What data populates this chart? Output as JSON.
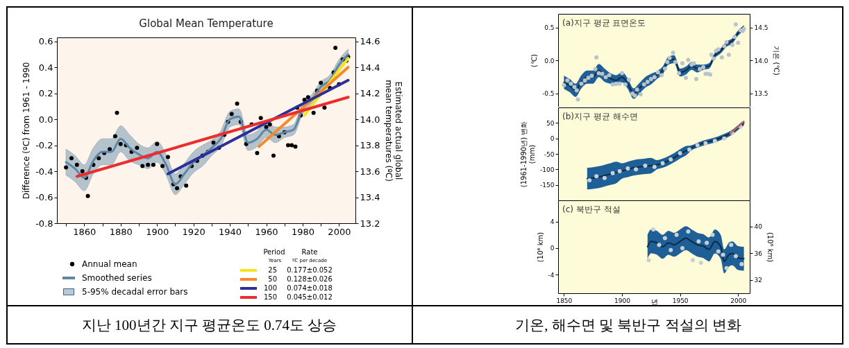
{
  "chart_data": [
    {
      "type": "scatter",
      "title": "Global Mean Temperature",
      "ylabel": "Difference (ºC) from 1961 - 1990",
      "y2label": "Estimated actual global mean temperatures (ºC)",
      "xlim": [
        1845,
        2009
      ],
      "xticks": [
        {
          "value": 1850,
          "label": null
        },
        1860,
        {
          "value": 1870,
          "label": null
        },
        1880,
        {
          "value": 1890,
          "label": null
        },
        1900,
        {
          "value": 1910,
          "label": null
        },
        1920,
        {
          "value": 1930,
          "label": null
        },
        1940,
        {
          "value": 1950,
          "label": null
        },
        1960,
        {
          "value": 1970,
          "label": null
        },
        1980,
        {
          "value": 1990,
          "label": null
        },
        2000
      ],
      "ylim": [
        -0.8,
        0.63
      ],
      "yticks": [
        -0.8,
        -0.6,
        -0.4,
        -0.2,
        {
          "value": 0,
          "label": "0.0"
        },
        0.2,
        0.4,
        0.6
      ],
      "y2lim": [
        13.2,
        14.63
      ],
      "y2ticks": [
        13.2,
        13.4,
        13.6,
        13.8,
        {
          "value": 14,
          "label": "14.0"
        },
        14.2,
        14.4,
        14.6
      ],
      "legend": "bottom",
      "annotations": [
        "지난 100년간 지구 평균온도 0.74도 상승",
        "5-95% decadal error bars",
        "Period",
        "Years",
        "Rate",
        "ºC per decade",
        "0.177±0.052",
        "0.128±0.026",
        "0.074±0.018",
        "0.045±0.012"
      ],
      "series": [
        {
          "name": "Annual mean",
          "color": "#000000",
          "x": [
            1850,
            1853,
            1856,
            1859,
            1861,
            1862,
            1865,
            1868,
            1871,
            1874,
            1877,
            1878,
            1880,
            1883,
            1886,
            1889,
            1892,
            1895,
            1898,
            1900,
            1903,
            1906,
            1909,
            1911,
            1913,
            1916,
            1919,
            1922,
            1925,
            1928,
            1931,
            1934,
            1937,
            1939,
            1941,
            1944,
            1946,
            1949,
            1952,
            1955,
            1957,
            1960,
            1962,
            1964,
            1967,
            1970,
            1972,
            1974,
            1976,
            1977,
            1979,
            1981,
            1983,
            1986,
            1988,
            1990,
            1992,
            1995,
            1997,
            1998,
            2000,
            2002,
            2004,
            2005
          ],
          "values": [
            -0.37,
            -0.3,
            -0.35,
            -0.4,
            -0.45,
            -0.59,
            -0.35,
            -0.3,
            -0.26,
            -0.23,
            -0.13,
            0.05,
            -0.19,
            -0.2,
            -0.25,
            -0.22,
            -0.36,
            -0.35,
            -0.35,
            -0.19,
            -0.36,
            -0.29,
            -0.5,
            -0.53,
            -0.44,
            -0.51,
            -0.36,
            -0.32,
            -0.28,
            -0.25,
            -0.18,
            -0.22,
            -0.12,
            -0.02,
            0.04,
            0.12,
            -0.02,
            -0.19,
            -0.04,
            -0.26,
            0.01,
            -0.06,
            -0.04,
            -0.28,
            -0.13,
            -0.1,
            -0.2,
            -0.2,
            -0.21,
            0.09,
            0.03,
            0.15,
            0.17,
            0.05,
            0.22,
            0.28,
            0.09,
            0.24,
            0.36,
            0.55,
            0.27,
            0.46,
            0.45,
            0.48
          ]
        },
        {
          "type": "line",
          "name": "Smoothed series",
          "color": "#5d87a5",
          "x": [
            1850,
            1855,
            1860,
            1865,
            1870,
            1875,
            1880,
            1885,
            1890,
            1895,
            1900,
            1905,
            1910,
            1915,
            1920,
            1925,
            1930,
            1935,
            1940,
            1945,
            1950,
            1955,
            1960,
            1965,
            1970,
            1975,
            1980,
            1985,
            1990,
            1995,
            2000,
            2005
          ],
          "values": [
            -0.33,
            -0.38,
            -0.45,
            -0.32,
            -0.25,
            -0.25,
            -0.15,
            -0.22,
            -0.27,
            -0.3,
            -0.25,
            -0.35,
            -0.5,
            -0.42,
            -0.33,
            -0.28,
            -0.22,
            -0.15,
            0.0,
            0.02,
            -0.18,
            -0.15,
            -0.08,
            -0.12,
            -0.1,
            -0.08,
            0.08,
            0.15,
            0.25,
            0.3,
            0.42,
            0.5
          ],
          "lower": [
            -0.43,
            -0.48,
            -0.55,
            -0.42,
            -0.35,
            -0.35,
            -0.25,
            -0.32,
            -0.35,
            -0.38,
            -0.33,
            -0.43,
            -0.58,
            -0.5,
            -0.41,
            -0.36,
            -0.28,
            -0.21,
            -0.06,
            -0.04,
            -0.24,
            -0.21,
            -0.14,
            -0.18,
            -0.14,
            -0.12,
            0.04,
            0.11,
            0.21,
            0.26,
            0.38,
            0.46
          ],
          "upper": [
            -0.23,
            -0.28,
            -0.35,
            -0.22,
            -0.15,
            -0.15,
            -0.05,
            -0.12,
            -0.19,
            -0.22,
            -0.17,
            -0.27,
            -0.42,
            -0.34,
            -0.25,
            -0.2,
            -0.16,
            -0.09,
            0.06,
            0.08,
            -0.12,
            -0.09,
            -0.02,
            -0.06,
            -0.06,
            -0.04,
            0.12,
            0.19,
            0.29,
            0.34,
            0.46,
            0.54
          ]
        },
        {
          "type": "line",
          "name": "25",
          "color": "#f5e51b",
          "x": [
            1981,
            2005
          ],
          "values": [
            0.03,
            0.47
          ]
        },
        {
          "type": "line",
          "name": "50",
          "color": "#f7892b",
          "x": [
            1956,
            2005
          ],
          "values": [
            -0.21,
            0.4
          ]
        },
        {
          "type": "line",
          "name": "100",
          "color": "#2a2f9a",
          "x": [
            1906,
            2005
          ],
          "values": [
            -0.42,
            0.3
          ]
        },
        {
          "type": "line",
          "name": "150",
          "color": "#ec2d2d",
          "x": [
            1856,
            2005
          ],
          "values": [
            -0.44,
            0.17
          ]
        }
      ]
    },
    {
      "type": "line",
      "title": "(a)지구 평균 표면온도",
      "ylabel": "(℃)",
      "y2label": "기온 (℃)",
      "xlim": [
        1845,
        2010
      ],
      "xticks": [
        1850,
        1900,
        1950,
        2000
      ],
      "ylim": [
        -0.7,
        0.71
      ],
      "yticks": [
        -0.5,
        {
          "value": 0,
          "label": "0.0"
        },
        0.5
      ],
      "y2lim": [
        13.3,
        14.71
      ],
      "y2ticks": [
        {
          "value": 13.5,
          "label": "13.5"
        },
        {
          "value": 14,
          "label": "14.0"
        },
        {
          "value": 14.5,
          "label": "14.5"
        }
      ],
      "tick_labels": "y",
      "series": [
        {
          "color": "#0e2b45",
          "x": [
            1850,
            1855,
            1860,
            1865,
            1870,
            1875,
            1880,
            1885,
            1890,
            1895,
            1900,
            1905,
            1910,
            1915,
            1920,
            1925,
            1930,
            1935,
            1940,
            1945,
            1950,
            1955,
            1960,
            1965,
            1970,
            1975,
            1980,
            1985,
            1990,
            1995,
            2000,
            2005
          ],
          "values": [
            -0.33,
            -0.38,
            -0.45,
            -0.32,
            -0.25,
            -0.25,
            -0.15,
            -0.22,
            -0.27,
            -0.3,
            -0.25,
            -0.35,
            -0.5,
            -0.42,
            -0.33,
            -0.28,
            -0.22,
            -0.15,
            0.0,
            0.02,
            -0.18,
            -0.15,
            -0.08,
            -0.12,
            -0.1,
            -0.08,
            0.08,
            0.15,
            0.25,
            0.3,
            0.42,
            0.5
          ],
          "lower": [
            -0.43,
            -0.48,
            -0.55,
            -0.42,
            -0.35,
            -0.35,
            -0.25,
            -0.32,
            -0.35,
            -0.38,
            -0.33,
            -0.43,
            -0.58,
            -0.5,
            -0.41,
            -0.36,
            -0.28,
            -0.21,
            -0.06,
            -0.04,
            -0.24,
            -0.21,
            -0.14,
            -0.18,
            -0.14,
            -0.12,
            0.04,
            0.11,
            0.21,
            0.26,
            0.38,
            0.46
          ],
          "upper": [
            -0.23,
            -0.28,
            -0.35,
            -0.22,
            -0.15,
            -0.15,
            -0.05,
            -0.12,
            -0.19,
            -0.22,
            -0.17,
            -0.27,
            -0.42,
            -0.34,
            -0.25,
            -0.2,
            -0.16,
            -0.09,
            0.06,
            0.08,
            -0.12,
            -0.09,
            -0.02,
            -0.06,
            -0.06,
            -0.04,
            0.12,
            0.19,
            0.29,
            0.34,
            0.46,
            0.54
          ]
        },
        {
          "type": "scatter",
          "color": "#b9c3cb",
          "x": [
            1850,
            1853,
            1856,
            1859,
            1861,
            1862,
            1865,
            1868,
            1871,
            1874,
            1877,
            1878,
            1880,
            1883,
            1886,
            1889,
            1892,
            1895,
            1898,
            1900,
            1903,
            1906,
            1909,
            1911,
            1913,
            1916,
            1919,
            1922,
            1925,
            1928,
            1931,
            1934,
            1937,
            1939,
            1941,
            1944,
            1946,
            1949,
            1952,
            1955,
            1957,
            1960,
            1962,
            1964,
            1967,
            1970,
            1972,
            1974,
            1976,
            1977,
            1979,
            1981,
            1983,
            1986,
            1988,
            1990,
            1992,
            1995,
            1997,
            1998,
            2000,
            2002,
            2004,
            2005
          ],
          "values": [
            -0.37,
            -0.3,
            -0.35,
            -0.4,
            -0.45,
            -0.59,
            -0.35,
            -0.3,
            -0.26,
            -0.23,
            -0.13,
            0.05,
            -0.19,
            -0.2,
            -0.25,
            -0.22,
            -0.36,
            -0.35,
            -0.35,
            -0.19,
            -0.36,
            -0.29,
            -0.5,
            -0.53,
            -0.44,
            -0.51,
            -0.36,
            -0.32,
            -0.28,
            -0.25,
            -0.18,
            -0.22,
            -0.12,
            -0.02,
            0.04,
            0.12,
            -0.02,
            -0.19,
            -0.04,
            -0.26,
            0.01,
            -0.06,
            -0.04,
            -0.28,
            -0.13,
            -0.1,
            -0.2,
            -0.2,
            -0.21,
            0.09,
            0.03,
            0.15,
            0.17,
            0.05,
            0.22,
            0.28,
            0.09,
            0.24,
            0.36,
            0.55,
            0.27,
            0.46,
            0.45,
            0.48
          ]
        }
      ]
    },
    {
      "type": "line",
      "title": "(b)지구 평균 해수면",
      "ylabel": "(1961-1990년) 변화 (mm)",
      "xlim": [
        1845,
        2010
      ],
      "xticks": [
        1850,
        1900,
        1950,
        2000
      ],
      "ylim": [
        -200,
        100
      ],
      "yticks": [
        -150,
        -100,
        -50,
        0,
        50
      ],
      "tick_labels": "y",
      "series": [
        {
          "color": "#0e2b45",
          "x": [
            1870,
            1875,
            1880,
            1885,
            1890,
            1895,
            1900,
            1905,
            1910,
            1915,
            1920,
            1925,
            1930,
            1935,
            1940,
            1945,
            1950,
            1955,
            1960,
            1965,
            1970,
            1975,
            1980,
            1985,
            1990,
            1995,
            2000,
            2005
          ],
          "values": [
            -130,
            -128,
            -125,
            -120,
            -115,
            -110,
            -105,
            -100,
            -95,
            -92,
            -90,
            -88,
            -85,
            -80,
            -72,
            -62,
            -50,
            -40,
            -30,
            -22,
            -15,
            -10,
            -5,
            2,
            10,
            20,
            35,
            50
          ],
          "lower": [
            -165,
            -163,
            -160,
            -155,
            -150,
            -145,
            -130,
            -125,
            -120,
            -117,
            -115,
            -113,
            -100,
            -95,
            -87,
            -77,
            -65,
            -55,
            -38,
            -30,
            -23,
            -18,
            -13,
            -6,
            2,
            12,
            27,
            42
          ],
          "upper": [
            -95,
            -93,
            -90,
            -85,
            -80,
            -75,
            -80,
            -75,
            -70,
            -67,
            -65,
            -63,
            -70,
            -65,
            -57,
            -47,
            -35,
            -25,
            -22,
            -14,
            -7,
            -2,
            3,
            10,
            18,
            28,
            43,
            58
          ]
        },
        {
          "type": "scatter",
          "color": "#c8d0d6",
          "x": [
            1872,
            1878,
            1885,
            1892,
            1898,
            1905,
            1912,
            1920,
            1928,
            1935,
            1942,
            1950,
            1958,
            1965,
            1972,
            1980,
            1988,
            1995,
            2002
          ],
          "values": [
            -135,
            -122,
            -128,
            -112,
            -106,
            -97,
            -100,
            -88,
            -92,
            -80,
            -68,
            -48,
            -36,
            -22,
            -16,
            -8,
            0,
            18,
            38
          ]
        },
        {
          "color": "#d6604d",
          "x": [
            1993,
            1997,
            2001,
            2005
          ],
          "values": [
            15,
            28,
            40,
            55
          ]
        }
      ]
    },
    {
      "type": "line",
      "title": "(c) 북반구 적설",
      "ylabel": "(10⁶ km)",
      "y2label": "(10⁶ km)",
      "xlabel": "년",
      "xlim": [
        1845,
        2010
      ],
      "xticks": [
        1850,
        1900,
        1950,
        2000
      ],
      "ylim": [
        -6.8,
        7.2
      ],
      "yticks": [
        -4,
        0,
        4
      ],
      "y2lim": [
        30,
        43.9
      ],
      "y2ticks": [
        32,
        36,
        40
      ],
      "annotations": [
        "기온, 해수면 및 북반구 적설의 변화"
      ],
      "series": [
        {
          "color": "#0e2b45",
          "x": [
            1922,
            1925,
            1930,
            1935,
            1940,
            1945,
            1950,
            1955,
            1960,
            1965,
            1970,
            1975,
            1980,
            1985,
            1988,
            1992,
            1995,
            2000,
            2005
          ],
          "values": [
            0.2,
            1.0,
            0.8,
            0.2,
            0.8,
            0.5,
            1.0,
            1.5,
            1.0,
            0.5,
            0.3,
            -0.2,
            1.0,
            0.2,
            -2.0,
            -1.0,
            -0.8,
            -1.5,
            -1.6
          ],
          "lower": [
            -1.6,
            -0.8,
            -1.0,
            -1.6,
            -1.0,
            -1.3,
            -0.8,
            -0.3,
            -0.8,
            -1.3,
            -1.5,
            -2.0,
            -0.8,
            -1.6,
            -3.8,
            -2.8,
            -2.6,
            -3.3,
            -3.4
          ],
          "upper": [
            2.0,
            2.8,
            2.6,
            2.0,
            2.6,
            2.3,
            2.8,
            3.3,
            2.8,
            2.3,
            2.1,
            1.6,
            2.8,
            2.0,
            -0.2,
            0.8,
            1.0,
            0.3,
            0.2
          ]
        },
        {
          "type": "scatter",
          "color": "#c8d0d6",
          "x": [
            1923,
            1927,
            1932,
            1937,
            1942,
            1947,
            1952,
            1957,
            1961,
            1966,
            1968,
            1973,
            1978,
            1983,
            1987,
            1990,
            1994,
            1998,
            2003
          ],
          "values": [
            -1.8,
            2.8,
            0.5,
            1.5,
            -0.3,
            2.0,
            0.0,
            2.5,
            -1.8,
            1.0,
            -2.2,
            0.8,
            2.0,
            -0.5,
            -1.0,
            -3.0,
            0.5,
            -1.2,
            -2.4
          ]
        }
      ]
    }
  ]
}
